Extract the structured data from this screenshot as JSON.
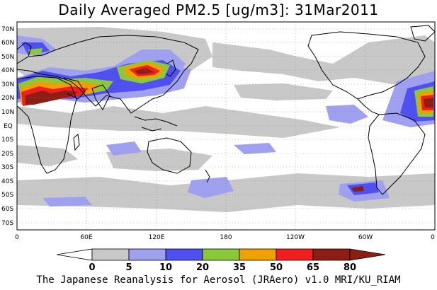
{
  "title": "Daily Averaged PM2.5 [ug/m3]: 31Mar2011",
  "credit": "The Japanese Reanalysis for Aerosol (JRAero) v1.0 MRI/KU_RIAM",
  "map": {
    "projection": "equirectangular",
    "lon_range": [
      0,
      360
    ],
    "lat_range": [
      -75,
      75
    ],
    "grid": true,
    "lat_tick_labels": [
      "70N",
      "60N",
      "50N",
      "40N",
      "30N",
      "20N",
      "10N",
      "EQ",
      "10S",
      "20S",
      "30S",
      "40S",
      "50S",
      "60S",
      "70S"
    ],
    "lon_tick_labels": [
      "0",
      "60E",
      "120E",
      "180",
      "120W",
      "60W",
      "0"
    ]
  },
  "colorbar": {
    "ticks": [
      "0",
      "5",
      "10",
      "20",
      "35",
      "50",
      "65",
      "80"
    ],
    "colors": [
      "#ffffff",
      "#c8c8c8",
      "#a0a0f0",
      "#5050f0",
      "#8cc83c",
      "#f0a000",
      "#f01e1e",
      "#8c1e14"
    ]
  }
}
